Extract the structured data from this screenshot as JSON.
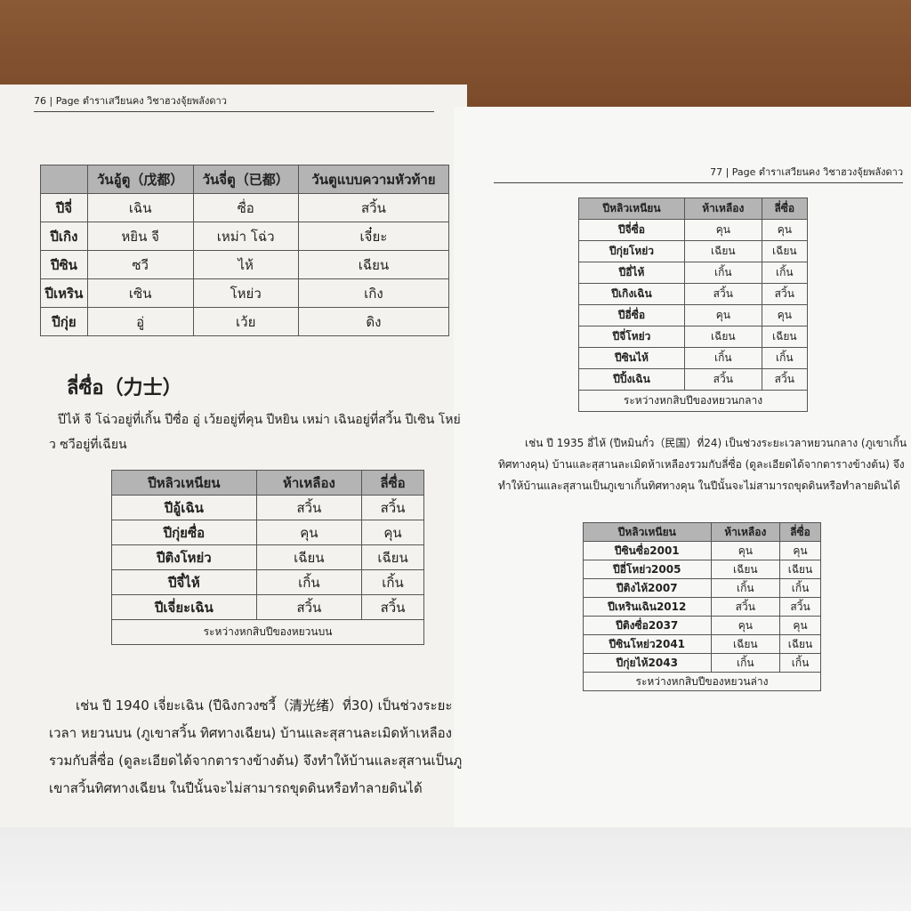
{
  "left_page": {
    "header": "76 | Page ตำราเสวียนคง วิชาฮวงจุ้ยพลังดาว",
    "table1": {
      "headers": [
        "",
        "วันอู้ตู（戊都）",
        "วันจี่ตู（已都）",
        "วันตูแบบความหัวท้าย"
      ],
      "rows": [
        [
          "ปีจี่",
          "เฉิน",
          "ซื่อ",
          "สวิ้น"
        ],
        [
          "ปีเกิง",
          "หยิน จี",
          "เหม่า โฉ่ว",
          "เจี๋ยะ"
        ],
        [
          "ปีซิน",
          "ซวี",
          "ไห้",
          "เฉียน"
        ],
        [
          "ปีเหริน",
          "เซิน",
          "โหย่ว",
          "เกิง"
        ],
        [
          "ปีกุ่ย",
          "อู่",
          "เว้ย",
          "ดิง"
        ]
      ]
    },
    "section_title": "ลี่ซื่อ（力士）",
    "paragraph1": "ปีไห้ จี โฉ่วอยู่ที่เกิ้น    ปีซื่อ อู่ เว้ยอยู่ที่คุน ปีหยิน เหม่า เฉินอยู่ที่สวิ้น ปีเซิน โหย่ว ซวีอยู่ที่เฉียน",
    "table2": {
      "headers": [
        "ปีหลิวเหนียน",
        "ห้าเหลือง",
        "ลี่ซื่อ"
      ],
      "rows": [
        [
          "ปีอู้เฉิน",
          "สวิ้น",
          "สวิ้น"
        ],
        [
          "ปีกุ่ยซื่อ",
          "คุน",
          "คุน"
        ],
        [
          "ปีติงโหย่ว",
          "เฉียน",
          "เฉียน"
        ],
        [
          "ปีจี๋ไห้",
          "เกิ้น",
          "เกิ้น"
        ],
        [
          "ปีเจี่ยะเฉิน",
          "สวิ้น",
          "สวิ้น"
        ]
      ],
      "caption": "ระหว่างหกสิบปีของหยวนบน"
    },
    "paragraph2": "เช่น ปี 1940 เจี่ยะเฉิน (ปีฉิงกวงซวี้（清光绪）ที่30) เป็นช่วงระยะเวลา หยวนบน (ภูเขาสวิ้น ทิศทางเฉียน) บ้านและสุสานละเมิดห้าเหลืองรวมกับลี่ซื่อ (ดูละเอียดได้จากตารางข้างต้น) จึงทำให้บ้านและสุสานเป็นภูเขาสวิ้นทิศทางเฉียน ในปีนั้นจะไม่สามารถขุดดินหรือทำลายดินได้"
  },
  "right_page": {
    "header": "77 | Page ตำราเสวียนคง วิชาฮวงจุ้ยพลังดาว",
    "table3": {
      "headers": [
        "ปีหลิวเหนียน",
        "ห้าเหลือง",
        "ลี่ซื่อ"
      ],
      "rows": [
        [
          "ปีจี่ซื่อ",
          "คุน",
          "คุน"
        ],
        [
          "ปีกุ่ยโหย่ว",
          "เฉียน",
          "เฉียน"
        ],
        [
          "ปีอี่ไห้",
          "เกิ้น",
          "เกิ้น"
        ],
        [
          "ปีเกิงเฉิน",
          "สวิ้น",
          "สวิ้น"
        ],
        [
          "ปีอี่ซื่อ",
          "คุน",
          "คุน"
        ],
        [
          "ปีจี่โหย่ว",
          "เฉียน",
          "เฉียน"
        ],
        [
          "ปีซินไห้",
          "เกิ้น",
          "เกิ้น"
        ],
        [
          "ปีปิ้งเฉิน",
          "สวิ้น",
          "สวิ้น"
        ]
      ],
      "caption": "ระหว่างหกสิบปีของหยวนกลาง"
    },
    "paragraph": "เช่น ปี 1935 อี่ไห้ (ปีหมินกั๋ว（民国）ที่24) เป็นช่วงระยะเวลาหยวนกลาง (ภูเขาเกิ้น ทิศทางคุน) บ้านและสุสานละเมิดห้าเหลืองรวมกับลี่ซื่อ (ดูละเอียดได้จากตารางข้างต้น) จึงทำให้บ้านและสุสานเป็นภูเขาเกิ้นทิศทางคุน ในปีนั้นจะไม่สามารถขุดดินหรือทำลายดินได้",
    "table4": {
      "headers": [
        "ปีหลิวเหนียน",
        "ห้าเหลือง",
        "ลี่ซื่อ"
      ],
      "rows": [
        [
          "ปีซินซื่อ2001",
          "คุน",
          "คุน"
        ],
        [
          "ปีอี่โหย่ว2005",
          "เฉียน",
          "เฉียน"
        ],
        [
          "ปีติงไห้2007",
          "เกิ้น",
          "เกิ้น"
        ],
        [
          "ปีเหรินเฉิน2012",
          "สวิ้น",
          "สวิ้น"
        ],
        [
          "ปีติงซื่อ2037",
          "คุน",
          "คุน"
        ],
        [
          "ปีซินโหย่ว2041",
          "เฉียน",
          "เฉียน"
        ],
        [
          "ปีกุ่ยไห้2043",
          "เกิ้น",
          "เกิ้น"
        ]
      ],
      "caption": "ระหว่างหกสิบปีของหยวนล่าง"
    }
  }
}
